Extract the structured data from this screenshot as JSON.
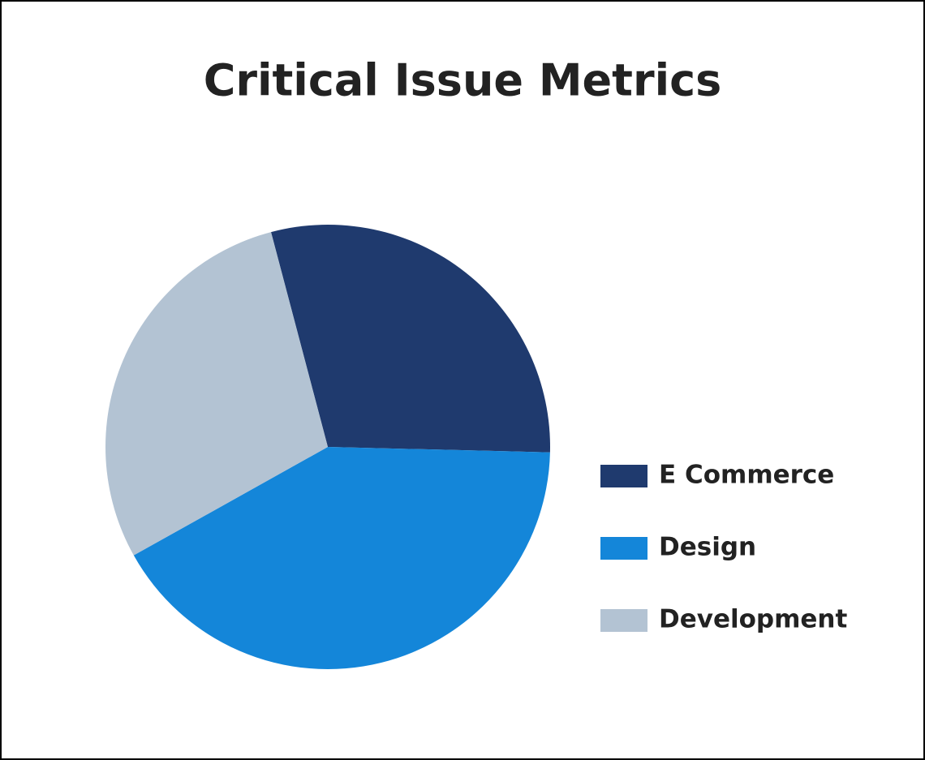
{
  "chart_data": {
    "type": "pie",
    "title": "Critical Issue Metrics",
    "categories": [
      "E Commerce",
      "Design",
      "Development"
    ],
    "values": [
      29.5,
      41.5,
      29
    ],
    "colors": [
      "#1f3a6e",
      "#1486d9",
      "#b3c3d3"
    ]
  }
}
